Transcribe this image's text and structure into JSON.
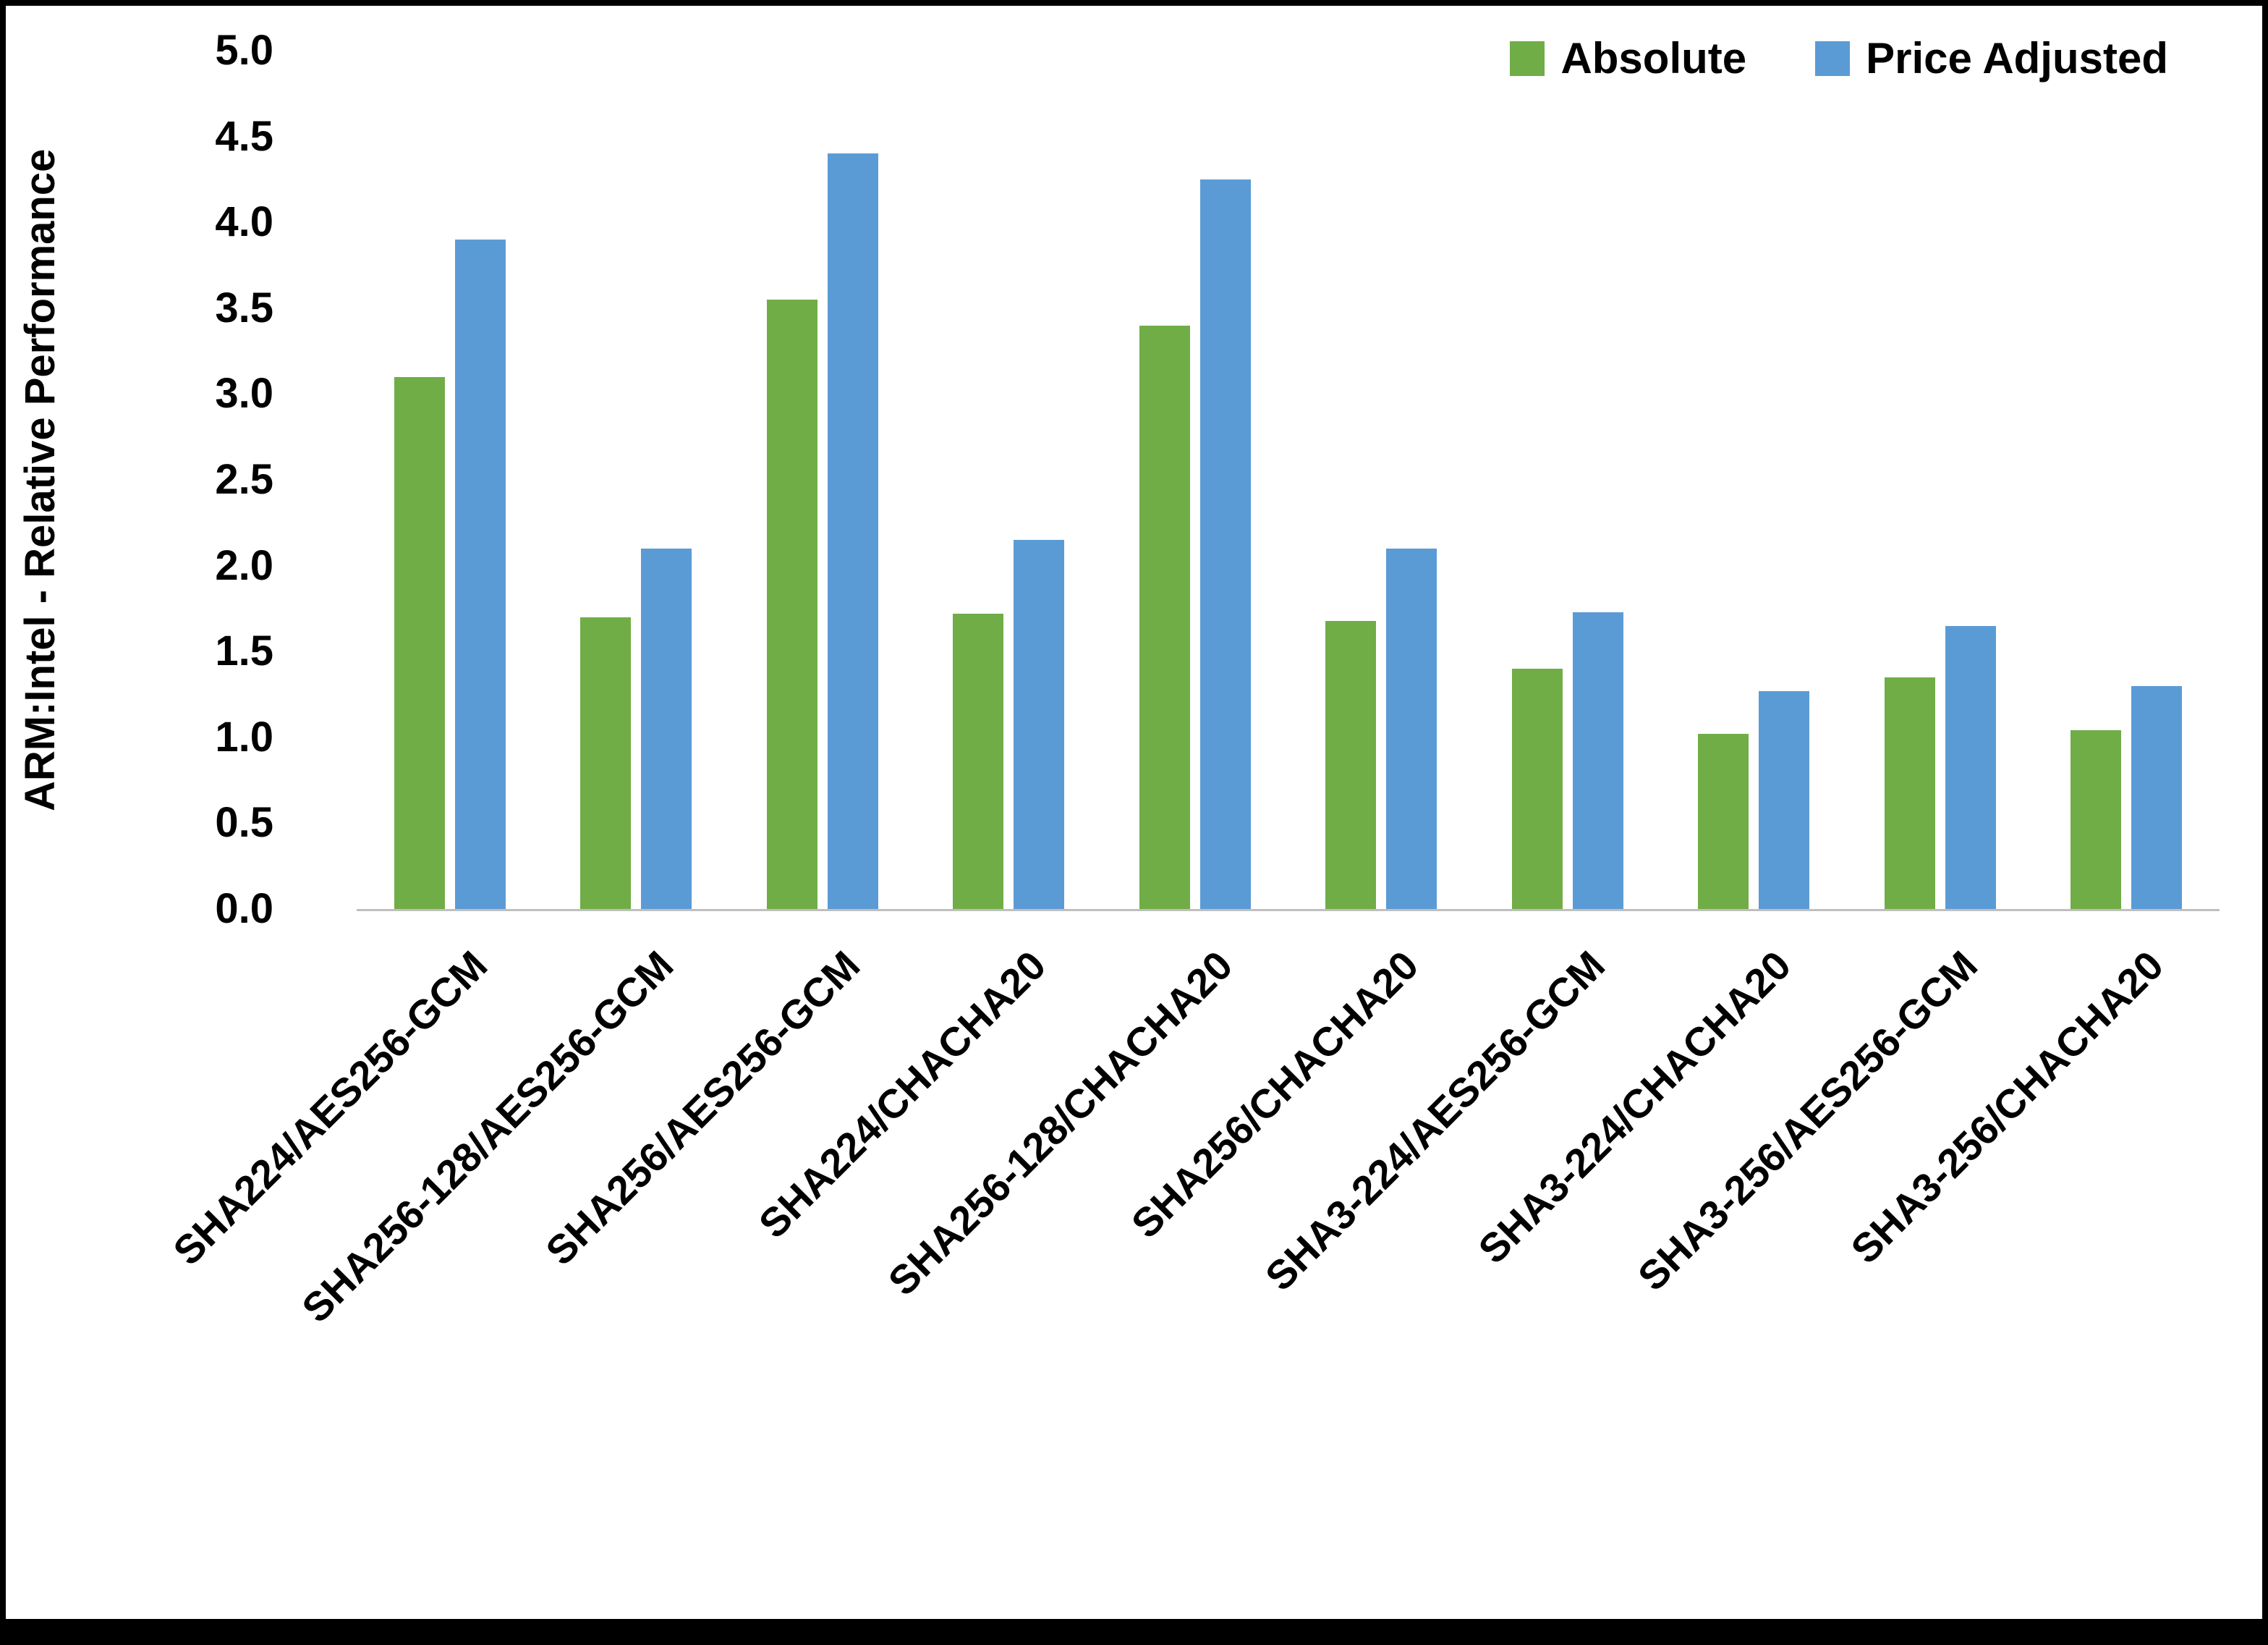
{
  "chart_data": {
    "type": "bar",
    "title": "",
    "xlabel": "",
    "ylabel": "ARM:Intel - Relative Performance",
    "ylim": [
      0,
      5
    ],
    "ytick_step": 0.5,
    "yticks": [
      "5.0",
      "4.5",
      "4.0",
      "3.5",
      "3.0",
      "2.5",
      "2.0",
      "1.5",
      "1.0",
      "0.5",
      "0.0"
    ],
    "grid": false,
    "legend_position": "top-right",
    "categories": [
      "SHA224/AES256-GCM",
      "SHA256-128/AES256-GCM",
      "SHA256/AES256-GCM",
      "SHA224/CHACHA20",
      "SHA256-128/CHACHA20",
      "SHA256/CHACHA20",
      "SHA3-224/AES256-GCM",
      "SHA3-224/CHACHA20",
      "SHA3-256/AES256-GCM",
      "SHA3-256/CHACHA20"
    ],
    "series": [
      {
        "name": "Absolute",
        "color": "#70AD47",
        "values": [
          3.1,
          1.7,
          3.55,
          1.72,
          3.4,
          1.68,
          1.4,
          1.02,
          1.35,
          1.04
        ]
      },
      {
        "name": "Price Adjusted",
        "color": "#5B9BD5",
        "values": [
          3.9,
          2.1,
          4.4,
          2.15,
          4.25,
          2.1,
          1.73,
          1.27,
          1.65,
          1.3
        ]
      }
    ]
  },
  "colors": {
    "absolute": "#70AD47",
    "price_adjusted": "#5B9BD5",
    "axis_line": "#bfbfbf",
    "text": "#000000",
    "background": "#ffffff",
    "frame_border": "#000000"
  }
}
